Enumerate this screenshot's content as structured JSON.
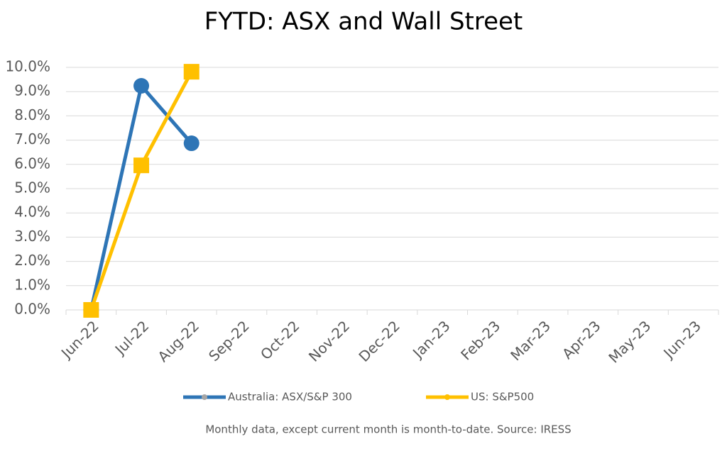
{
  "chart_data": {
    "type": "line",
    "title": "FYTD: ASX and Wall Street",
    "footnote": "Monthly data, except current month is month-to-date.  Source: IRESS",
    "categories": [
      "Jun-22",
      "Jul-22",
      "Aug-22",
      "Sep-22",
      "Oct-22",
      "Nov-22",
      "Dec-22",
      "Jan-23",
      "Feb-23",
      "Mar-23",
      "Apr-23",
      "May-23",
      "Jun-23"
    ],
    "series": [
      {
        "name": "Australia: ASX/S&P 300",
        "color": "#2e75b6",
        "marker": "circle",
        "values": [
          0,
          9.24,
          6.87,
          null,
          null,
          null,
          null,
          null,
          null,
          null,
          null,
          null,
          null
        ]
      },
      {
        "name": "US: S&P500",
        "color": "#ffc000",
        "marker": "square",
        "values": [
          0,
          5.96,
          9.82,
          null,
          null,
          null,
          null,
          null,
          null,
          null,
          null,
          null,
          null
        ]
      }
    ],
    "ylim": [
      0,
      10
    ],
    "yticks": [
      {
        "value": 0,
        "label": "0.0%"
      },
      {
        "value": 1,
        "label": "1.0%"
      },
      {
        "value": 2,
        "label": "2.0%"
      },
      {
        "value": 3,
        "label": "3.0%"
      },
      {
        "value": 4,
        "label": "4.0%"
      },
      {
        "value": 5,
        "label": "5.0%"
      },
      {
        "value": 6,
        "label": "6.0%"
      },
      {
        "value": 7,
        "label": "7.0%"
      },
      {
        "value": 8,
        "label": "8.0%"
      },
      {
        "value": 9,
        "label": "9.0%"
      },
      {
        "value": 10,
        "label": "10.0%"
      }
    ],
    "grid": true,
    "legend": "bottom"
  }
}
